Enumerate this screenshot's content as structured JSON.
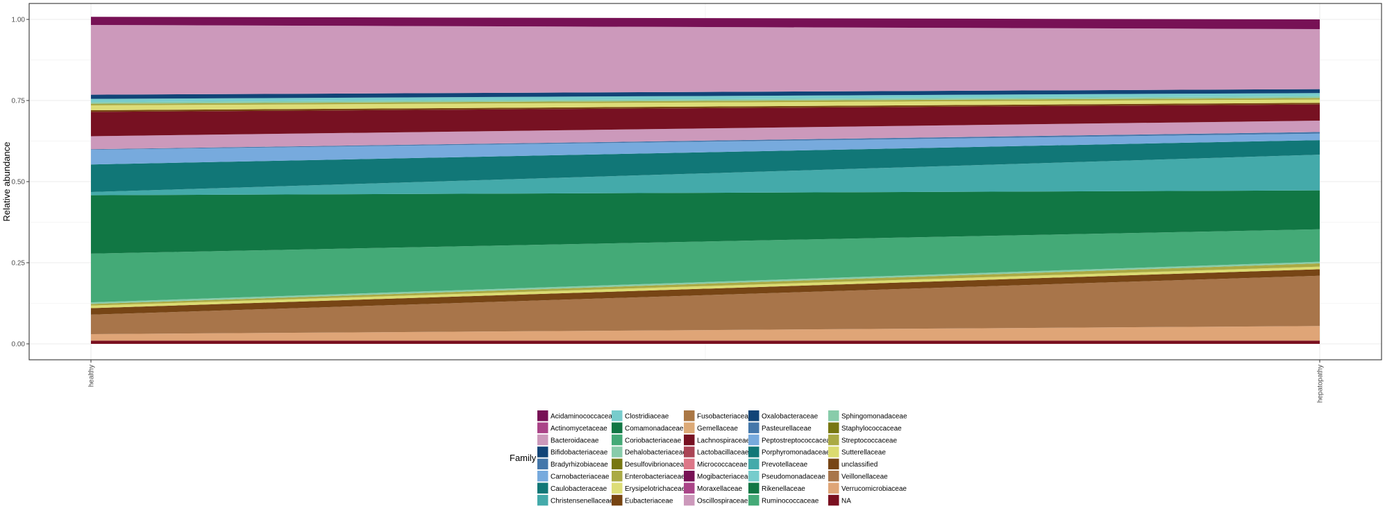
{
  "chart_data": {
    "type": "area",
    "stacked": true,
    "x": [
      "healthy",
      "hepatopathy"
    ],
    "ylabel": "Relative abundance",
    "xlabel": "",
    "ylim": [
      0,
      1
    ],
    "yticks": [
      "0.00",
      "0.25",
      "0.50",
      "0.75",
      "1.00"
    ],
    "grid": true,
    "legend": {
      "title": "Family",
      "position": "bottom",
      "columns": 5
    },
    "series": [
      {
        "name": "NA",
        "color": "#7a1020",
        "values": [
          0.01,
          0.01
        ]
      },
      {
        "name": "Verrucomicrobiaceae",
        "color": "#dfa577",
        "values": [
          0.02,
          0.045
        ]
      },
      {
        "name": "Veillonellaceae",
        "color": "#a8754a",
        "values": [
          0.06,
          0.155
        ]
      },
      {
        "name": "unclassified",
        "color": "#774515",
        "values": [
          0.02,
          0.02
        ]
      },
      {
        "name": "Sutterellaceae",
        "color": "#dbdb70",
        "values": [
          0.008,
          0.008
        ]
      },
      {
        "name": "Streptococcaceae",
        "color": "#aaaa44",
        "values": [
          0.005,
          0.01
        ]
      },
      {
        "name": "Staphylococcaceae",
        "color": "#777711",
        "values": [
          0.0,
          0.0
        ]
      },
      {
        "name": "Sphingomonadaceae",
        "color": "#88ccaa",
        "values": [
          0.005,
          0.005
        ]
      },
      {
        "name": "Ruminococcaceae",
        "color": "#44aa77",
        "values": [
          0.15,
          0.1
        ]
      },
      {
        "name": "Rikenellaceae",
        "color": "#117744",
        "values": [
          0.18,
          0.12
        ]
      },
      {
        "name": "Pseudomonadaceae",
        "color": "#77cccc",
        "values": [
          0.0,
          0.0
        ]
      },
      {
        "name": "Prevotellaceae",
        "color": "#44aaaa",
        "values": [
          0.01,
          0.11
        ]
      },
      {
        "name": "Porphyromonadaceae",
        "color": "#117777",
        "values": [
          0.085,
          0.045
        ]
      },
      {
        "name": "Peptostreptococcaceae",
        "color": "#77aadd",
        "values": [
          0.045,
          0.02
        ]
      },
      {
        "name": "Pasteurellaceae",
        "color": "#4477aa",
        "values": [
          0.002,
          0.005
        ]
      },
      {
        "name": "Oxalobacteraceae",
        "color": "#114477",
        "values": [
          0.0,
          0.0
        ]
      },
      {
        "name": "Oscillospiraceae",
        "color": "#cc99bb",
        "values": [
          0.04,
          0.035
        ]
      },
      {
        "name": "Moraxellaceae",
        "color": "#aa4488",
        "values": [
          0.0,
          0.0
        ]
      },
      {
        "name": "Mogibacteriaceae",
        "color": "#771155",
        "values": [
          0.0,
          0.0
        ]
      },
      {
        "name": "Micrococcaceae",
        "color": "#dd7788",
        "values": [
          0.0,
          0.0
        ]
      },
      {
        "name": "Lactobacillaceae",
        "color": "#aa4455",
        "values": [
          0.0,
          0.0
        ]
      },
      {
        "name": "Lachnospiraceae",
        "color": "#771122",
        "values": [
          0.075,
          0.05
        ]
      },
      {
        "name": "Gemellaceae",
        "color": "#ddaa77",
        "values": [
          0.0,
          0.0
        ]
      },
      {
        "name": "Fusobacteriaceae",
        "color": "#aa7744",
        "values": [
          0.0,
          0.0
        ]
      },
      {
        "name": "Eubacteriaceae",
        "color": "#774411",
        "values": [
          0.005,
          0.005
        ]
      },
      {
        "name": "Erysipelotrichaceae",
        "color": "#dddd77",
        "values": [
          0.015,
          0.01
        ]
      },
      {
        "name": "Enterobacteriaceae",
        "color": "#aaaa44",
        "values": [
          0.005,
          0.005
        ]
      },
      {
        "name": "Desulfovibrionaceae",
        "color": "#777711",
        "values": [
          0.0,
          0.0
        ]
      },
      {
        "name": "Dehalobacteriaceae",
        "color": "#88ccaa",
        "values": [
          0.005,
          0.005
        ]
      },
      {
        "name": "Coriobacteriaceae",
        "color": "#44aa77",
        "values": [
          0.0,
          0.0
        ]
      },
      {
        "name": "Comamonadaceae",
        "color": "#117744",
        "values": [
          0.0,
          0.0
        ]
      },
      {
        "name": "Clostridiaceae",
        "color": "#77cccc",
        "values": [
          0.01,
          0.01
        ]
      },
      {
        "name": "Christensenellaceae",
        "color": "#44aaaa",
        "values": [
          0.0,
          0.0
        ]
      },
      {
        "name": "Caulobacteraceae",
        "color": "#117777",
        "values": [
          0.0,
          0.0
        ]
      },
      {
        "name": "Carnobacteriaceae",
        "color": "#77aadd",
        "values": [
          0.0,
          0.0
        ]
      },
      {
        "name": "Bradyrhizobiaceae",
        "color": "#4477aa",
        "values": [
          0.0,
          0.0
        ]
      },
      {
        "name": "Bifidobacteriaceae",
        "color": "#114477",
        "values": [
          0.013,
          0.012
        ]
      },
      {
        "name": "Bacteroidaceae",
        "color": "#cc99bb",
        "values": [
          0.215,
          0.185
        ]
      },
      {
        "name": "Actinomycetaceae",
        "color": "#aa4488",
        "values": [
          0.0,
          0.0
        ]
      },
      {
        "name": "Acidaminococcaceae",
        "color": "#771155",
        "values": [
          0.025,
          0.03
        ]
      }
    ],
    "legend_order": [
      "Acidaminococcaceae",
      "Actinomycetaceae",
      "Bacteroidaceae",
      "Bifidobacteriaceae",
      "Bradyrhizobiaceae",
      "Carnobacteriaceae",
      "Caulobacteraceae",
      "Christensenellaceae",
      "Clostridiaceae",
      "Comamonadaceae",
      "Coriobacteriaceae",
      "Dehalobacteriaceae",
      "Desulfovibrionaceae",
      "Enterobacteriaceae",
      "Erysipelotrichaceae",
      "Eubacteriaceae",
      "Fusobacteriaceae",
      "Gemellaceae",
      "Lachnospiraceae",
      "Lactobacillaceae",
      "Micrococcaceae",
      "Mogibacteriaceae",
      "Moraxellaceae",
      "Oscillospiraceae",
      "Oxalobacteraceae",
      "Pasteurellaceae",
      "Peptostreptococcaceae",
      "Porphyromonadaceae",
      "Prevotellaceae",
      "Pseudomonadaceae",
      "Rikenellaceae",
      "Ruminococcaceae",
      "Sphingomonadaceae",
      "Staphylococcaceae",
      "Streptococcaceae",
      "Sutterellaceae",
      "unclassified",
      "Veillonellaceae",
      "Verrucomicrobiaceae",
      "NA"
    ]
  }
}
